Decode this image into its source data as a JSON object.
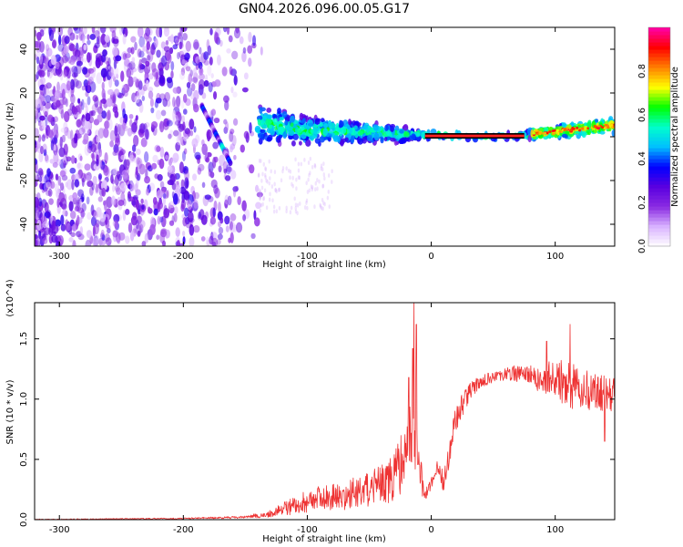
{
  "figure": {
    "title": "GN04.2026.096.00.05.G17"
  },
  "colors": {
    "snr_line": "#ee3333",
    "ridge_core": "#ff2020",
    "ridge_black": "#000000"
  },
  "chart_data": [
    {
      "type": "heatmap",
      "name": "spectrogram",
      "title": "",
      "xlabel": "Height of straight line (km)",
      "ylabel": "Frequency (Hz)",
      "xlim": [
        -320,
        148
      ],
      "ylim": [
        -50,
        50
      ],
      "xticks": [
        -300,
        -200,
        -100,
        0,
        100
      ],
      "yticks": [
        -40,
        -20,
        0,
        20,
        40
      ],
      "xtick_labels": [
        "-300",
        "-200",
        "-100",
        "0",
        "100"
      ],
      "ytick_labels": [
        "-40",
        "-20",
        "0",
        "20",
        "40"
      ],
      "grid": false,
      "colorbar": {
        "label": "Normalized spectral amplitude",
        "range": [
          0,
          1
        ],
        "ticks": [
          0.0,
          0.2,
          0.4,
          0.6,
          0.8
        ],
        "tick_labels": [
          "0.0",
          "0.2",
          "0.4",
          "0.6",
          "0.8"
        ],
        "colormap": [
          "#ffffff",
          "#d9b3ff",
          "#8a2be2",
          "#5a00e0",
          "#0000ff",
          "#00bfff",
          "#00ffcc",
          "#00ff00",
          "#ffff00",
          "#ff8000",
          "#ff0000",
          "#ff00aa"
        ]
      },
      "features": {
        "noise_region_x": [
          -320,
          -140
        ],
        "track_freq_points": [
          [
            -140,
            6
          ],
          [
            -100,
            3
          ],
          [
            -50,
            2
          ],
          [
            -20,
            1
          ],
          [
            0,
            1
          ],
          [
            50,
            0
          ],
          [
            80,
            1
          ],
          [
            110,
            3
          ],
          [
            148,
            5
          ]
        ],
        "clean_ridge_x": [
          -5,
          75
        ],
        "dispersed_line": [
          [
            -185,
            14
          ],
          [
            -162,
            -12
          ]
        ]
      }
    },
    {
      "type": "line",
      "name": "snr",
      "title": "",
      "xlabel": "Height of straight line (km)",
      "ylabel": "SNR (10 * v/v)",
      "scale_label": "(x10^4)",
      "xlim": [
        -320,
        148
      ],
      "ylim": [
        0,
        1.8
      ],
      "xticks": [
        -300,
        -200,
        -100,
        0,
        100
      ],
      "yticks": [
        0.0,
        0.5,
        1.0,
        1.5
      ],
      "xtick_labels": [
        "-300",
        "-200",
        "-100",
        "0",
        "100"
      ],
      "ytick_labels": [
        "0.0",
        "0.5",
        "1.0",
        "1.5"
      ],
      "grid": false,
      "envelope": {
        "x": [
          -320,
          -200,
          -150,
          -130,
          -110,
          -90,
          -70,
          -50,
          -30,
          -20,
          -15,
          -10,
          -5,
          0,
          5,
          10,
          20,
          30,
          40,
          60,
          80,
          90,
          100,
          110,
          120,
          130,
          148
        ],
        "y": [
          0.0,
          0.01,
          0.02,
          0.05,
          0.12,
          0.18,
          0.2,
          0.25,
          0.35,
          0.55,
          0.9,
          0.45,
          0.2,
          0.3,
          0.45,
          0.3,
          0.85,
          1.05,
          1.15,
          1.22,
          1.2,
          1.15,
          1.18,
          1.12,
          1.1,
          1.05,
          1.05
        ]
      },
      "noise_amplitude": {
        "x": [
          -320,
          -200,
          -150,
          -130,
          -110,
          -90,
          -70,
          -50,
          -30,
          -20,
          -15,
          -10,
          -5,
          0,
          5,
          10,
          20,
          30,
          40,
          60,
          80,
          90,
          100,
          110,
          120,
          130,
          148
        ],
        "y": [
          0.005,
          0.005,
          0.01,
          0.03,
          0.08,
          0.1,
          0.12,
          0.15,
          0.2,
          0.3,
          0.45,
          0.2,
          0.05,
          0.05,
          0.05,
          0.1,
          0.12,
          0.08,
          0.05,
          0.06,
          0.08,
          0.12,
          0.18,
          0.2,
          0.18,
          0.16,
          0.15
        ]
      },
      "peaks": [
        {
          "x": -14,
          "y": 1.8
        },
        {
          "x": -15,
          "y": 1.42
        },
        {
          "x": -12,
          "y": 1.62
        },
        {
          "x": -18,
          "y": 1.18
        },
        {
          "x": 112,
          "y": 1.62
        },
        {
          "x": 93,
          "y": 1.48
        },
        {
          "x": 140,
          "y": 0.65
        }
      ]
    }
  ]
}
